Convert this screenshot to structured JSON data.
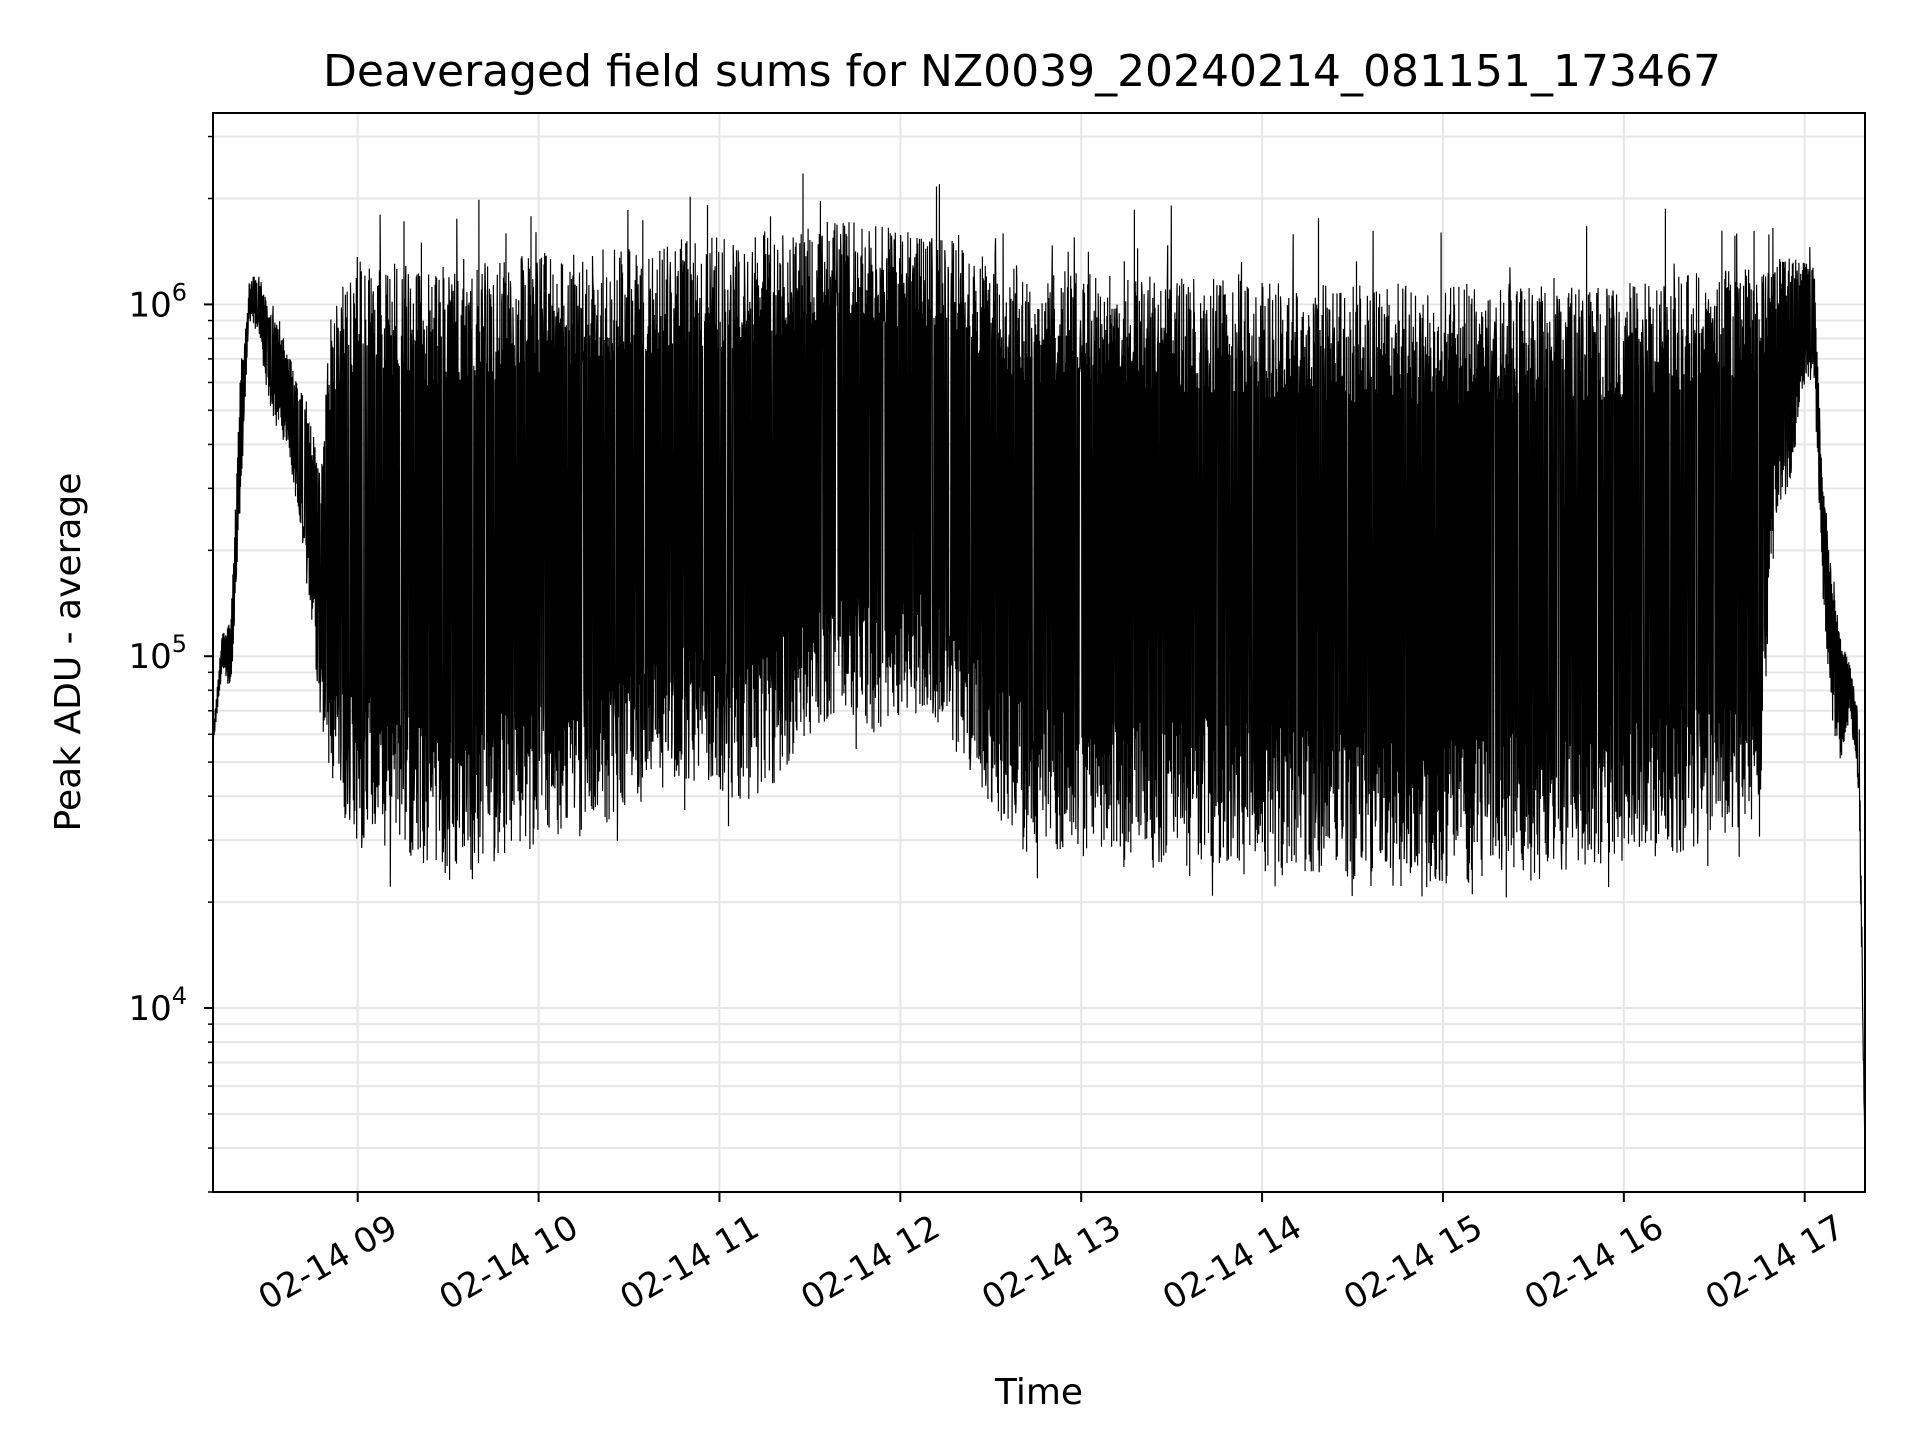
{
  "chart_data": {
    "type": "line",
    "title": "Deaveraged field sums for NZ0039_20240214_081151_173467",
    "xlabel": "Time",
    "ylabel": "Peak ADU - average",
    "y_scale": "log",
    "xlim": [
      "2024-02-14 08:12",
      "2024-02-14 17:20"
    ],
    "ylim": [
      3000,
      3500000
    ],
    "x_tick_labels": [
      "02-14 09",
      "02-14 10",
      "02-14 11",
      "02-14 12",
      "02-14 13",
      "02-14 14",
      "02-14 15",
      "02-14 16",
      "02-14 17"
    ],
    "y_ticks": [
      {
        "base": "10",
        "exp": "4",
        "value": 10000
      },
      {
        "base": "10",
        "exp": "5",
        "value": 100000
      },
      {
        "base": "10",
        "exp": "6",
        "value": 1000000
      }
    ],
    "grid": true,
    "line_color": "#000000",
    "grid_color": "#e6e6e6",
    "series": [
      {
        "x": [
          "08:12",
          "08:15",
          "08:18",
          "08:21",
          "08:24",
          "08:27",
          "08:30",
          "08:33",
          "08:36",
          "08:39",
          "08:42",
          "08:45",
          "08:48",
          "08:51",
          "08:54",
          "08:57",
          "09:00",
          "09:05",
          "09:10",
          "09:15",
          "09:20",
          "09:25",
          "09:30",
          "09:35",
          "09:40",
          "09:45",
          "09:50",
          "09:55",
          "10:00",
          "10:10",
          "10:20",
          "10:30",
          "10:40",
          "10:50",
          "11:00",
          "11:10",
          "11:20",
          "11:30",
          "11:40",
          "11:50",
          "12:00",
          "12:10",
          "12:20",
          "12:30",
          "12:40",
          "12:50",
          "13:00",
          "13:15",
          "13:30",
          "13:45",
          "14:00",
          "14:15",
          "14:30",
          "14:45",
          "15:00",
          "15:15",
          "15:30",
          "15:45",
          "16:00",
          "16:15",
          "16:30",
          "16:45",
          "16:50",
          "16:55",
          "17:00",
          "17:03",
          "17:06",
          "17:09",
          "17:12",
          "17:15",
          "17:18",
          "17:20"
        ],
        "upper": [
          60000,
          115000,
          130000,
          600000,
          1150000,
          1250000,
          1000000,
          900000,
          780000,
          650000,
          550000,
          450000,
          350000,
          950000,
          1100000,
          1300000,
          1400000,
          1450000,
          1400000,
          1300000,
          1250000,
          1300000,
          1300000,
          1350000,
          1300000,
          1350000,
          1350000,
          1400000,
          1400000,
          1450000,
          1500000,
          1450000,
          1500000,
          1550000,
          1550000,
          1600000,
          1650000,
          1700000,
          1750000,
          1700000,
          1650000,
          1600000,
          1500000,
          1400000,
          1300000,
          1250000,
          1250000,
          1200000,
          1200000,
          1200000,
          1150000,
          1150000,
          1150000,
          1150000,
          1150000,
          1150000,
          1150000,
          1150000,
          1150000,
          1200000,
          1250000,
          1300000,
          1350000,
          1350000,
          1400000,
          1300000,
          300000,
          170000,
          110000,
          95000,
          70000,
          3800
        ],
        "lower": [
          55000,
          90000,
          80000,
          250000,
          900000,
          850000,
          550000,
          450000,
          400000,
          300000,
          200000,
          120000,
          60000,
          45000,
          35000,
          32000,
          30000,
          30000,
          28000,
          27000,
          25000,
          24000,
          23000,
          24000,
          25000,
          25000,
          26000,
          27000,
          28000,
          30000,
          32000,
          35000,
          40000,
          45000,
          40000,
          38000,
          45000,
          60000,
          70000,
          60000,
          65000,
          70000,
          50000,
          35000,
          30000,
          28000,
          27000,
          25000,
          25000,
          26000,
          25000,
          24000,
          23000,
          22000,
          22000,
          22000,
          23000,
          24000,
          25000,
          27000,
          30000,
          35000,
          250000,
          300000,
          600000,
          650000,
          150000,
          65000,
          50000,
          70000,
          40000,
          3600
        ]
      }
    ]
  }
}
